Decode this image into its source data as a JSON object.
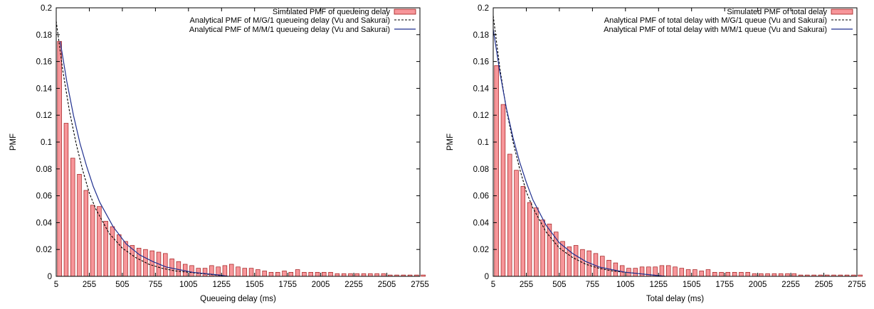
{
  "colors": {
    "bar_fill": "#f7969a",
    "bar_stroke": "#a01a1a",
    "mg1_line": "#000000",
    "mm1_line": "#1f2f8f",
    "axis": "#000000"
  },
  "chart_data": [
    {
      "type": "bar",
      "xlabel": "Queueing delay (ms)",
      "ylabel": "PMF",
      "xlim": [
        5,
        2755
      ],
      "ylim": [
        0,
        0.2
      ],
      "xticks": [
        5,
        255,
        505,
        755,
        1005,
        1255,
        1505,
        1755,
        2005,
        2255,
        2505,
        2755
      ],
      "yticks": [
        0,
        0.02,
        0.04,
        0.06,
        0.08,
        0.1,
        0.12,
        0.14,
        0.16,
        0.18,
        0.2
      ],
      "bin_start": 5,
      "bin_width": 50,
      "legend_position": "top-right",
      "legend": [
        "Simulated PMF of queueing delay",
        "Analytical PMF of M/G/1 queueing delay (Vu and Sakurai)",
        "Analytical PMF of M/M/1 queueing delay (Vu and Sakurai)"
      ],
      "bars": [
        0.175,
        0.114,
        0.088,
        0.076,
        0.064,
        0.053,
        0.052,
        0.041,
        0.037,
        0.031,
        0.026,
        0.023,
        0.021,
        0.02,
        0.019,
        0.018,
        0.017,
        0.013,
        0.011,
        0.009,
        0.008,
        0.006,
        0.006,
        0.008,
        0.007,
        0.008,
        0.009,
        0.007,
        0.006,
        0.006,
        0.005,
        0.004,
        0.003,
        0.003,
        0.004,
        0.003,
        0.005,
        0.003,
        0.003,
        0.003,
        0.003,
        0.003,
        0.002,
        0.002,
        0.002,
        0.002,
        0.002,
        0.002,
        0.002,
        0.002,
        0.001,
        0.001,
        0.001,
        0.001,
        0.001,
        0.001
      ],
      "series": [
        {
          "name": "Analytical PMF of M/G/1 queueing delay (Vu and Sakurai)",
          "style": "dashed",
          "x": [
            5,
            55,
            105,
            155,
            205,
            255,
            305,
            405,
            505,
            605,
            705,
            805,
            905,
            1005,
            1105,
            1205,
            1305
          ],
          "y": [
            0.19,
            0.153,
            0.123,
            0.099,
            0.079,
            0.062,
            0.05,
            0.032,
            0.021,
            0.014,
            0.009,
            0.006,
            0.004,
            0.003,
            0.002,
            0.001,
            0.0
          ]
        },
        {
          "name": "Analytical PMF of M/M/1 queueing delay (Vu and Sakurai)",
          "style": "solid",
          "x": [
            35,
            85,
            135,
            185,
            235,
            285,
            335,
            435,
            535,
            635,
            735,
            835,
            935,
            1035,
            1135,
            1235,
            1305
          ],
          "y": [
            0.175,
            0.145,
            0.12,
            0.099,
            0.082,
            0.067,
            0.055,
            0.037,
            0.024,
            0.016,
            0.011,
            0.007,
            0.005,
            0.003,
            0.002,
            0.001,
            0.0
          ]
        }
      ]
    },
    {
      "type": "bar",
      "xlabel": "Total delay (ms)",
      "ylabel": "PMF",
      "xlim": [
        5,
        2755
      ],
      "ylim": [
        0,
        0.2
      ],
      "xticks": [
        5,
        255,
        505,
        755,
        1005,
        1255,
        1505,
        1755,
        2005,
        2255,
        2505,
        2755
      ],
      "yticks": [
        0,
        0.02,
        0.04,
        0.06,
        0.08,
        0.1,
        0.12,
        0.14,
        0.16,
        0.18,
        0.2
      ],
      "bin_start": 5,
      "bin_width": 50,
      "legend_position": "top-right",
      "legend": [
        "Simulated PMF of total delay",
        "Analytical PMF of total delay with M/G/1 queue (Vu and Sakurai)",
        "Analytical PMF of total delay with M/M/1 queue (Vu and Sakurai)"
      ],
      "bars": [
        0.157,
        0.128,
        0.091,
        0.079,
        0.067,
        0.055,
        0.051,
        0.042,
        0.039,
        0.033,
        0.026,
        0.022,
        0.023,
        0.02,
        0.019,
        0.017,
        0.015,
        0.012,
        0.01,
        0.008,
        0.006,
        0.006,
        0.007,
        0.007,
        0.007,
        0.008,
        0.008,
        0.007,
        0.006,
        0.005,
        0.005,
        0.004,
        0.005,
        0.003,
        0.003,
        0.003,
        0.003,
        0.003,
        0.003,
        0.002,
        0.002,
        0.002,
        0.002,
        0.002,
        0.002,
        0.002,
        0.001,
        0.001,
        0.001,
        0.001,
        0.001,
        0.001,
        0.001,
        0.001,
        0.001,
        0.001
      ],
      "series": [
        {
          "name": "Analytical PMF of total delay with M/G/1 queue (Vu and Sakurai)",
          "style": "dashed",
          "x": [
            5,
            55,
            105,
            155,
            205,
            255,
            305,
            405,
            505,
            605,
            705,
            805,
            905,
            1005,
            1105,
            1205,
            1305
          ],
          "y": [
            0.194,
            0.155,
            0.124,
            0.1,
            0.08,
            0.063,
            0.051,
            0.033,
            0.021,
            0.014,
            0.009,
            0.006,
            0.004,
            0.003,
            0.002,
            0.001,
            0.0
          ]
        },
        {
          "name": "Analytical PMF of total delay with M/M/1 queue (Vu and Sakurai)",
          "style": "solid",
          "x": [
            5,
            55,
            105,
            155,
            205,
            255,
            305,
            405,
            505,
            605,
            705,
            805,
            905,
            1005,
            1105,
            1205,
            1305
          ],
          "y": [
            0.184,
            0.152,
            0.125,
            0.103,
            0.085,
            0.07,
            0.057,
            0.038,
            0.025,
            0.017,
            0.011,
            0.007,
            0.005,
            0.003,
            0.002,
            0.001,
            0.0
          ]
        }
      ]
    }
  ]
}
